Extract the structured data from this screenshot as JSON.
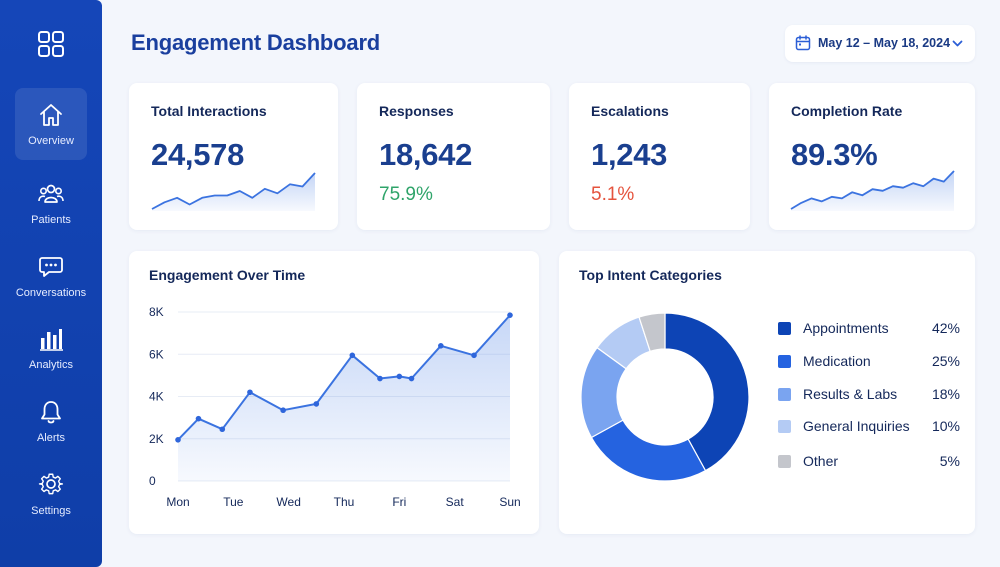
{
  "sidebar": {
    "logo_icon": "grid-icon",
    "items": [
      {
        "label": "Overview",
        "icon": "home-icon",
        "active": true
      },
      {
        "label": "Patients",
        "icon": "users-icon",
        "active": false
      },
      {
        "label": "Conversations",
        "icon": "chat-icon",
        "active": false
      },
      {
        "label": "Analytics",
        "icon": "bar-chart-icon",
        "active": false
      },
      {
        "label": "Alerts",
        "icon": "bell-icon",
        "active": false
      },
      {
        "label": "Settings",
        "icon": "gear-icon",
        "active": false
      }
    ]
  },
  "header": {
    "title": "Engagement Dashboard",
    "date_range": "May 12 – May 18, 2024"
  },
  "kpis": [
    {
      "label": "Total Interactions",
      "value": "24,578"
    },
    {
      "label": "Responses",
      "value": "18,642",
      "sub": "75.9%",
      "sub_color": "#2fa46a"
    },
    {
      "label": "Escalations",
      "value": "1,243",
      "sub": "5.1%",
      "sub_color": "#e5533d"
    },
    {
      "label": "Completion Rate",
      "value": "89.3%"
    }
  ],
  "colors": {
    "accent": "#1a3f9e",
    "line": "#3b73e0",
    "sidebar": "#1546b8"
  },
  "chart_data": [
    {
      "type": "area",
      "title": "Engagement Over Time",
      "x_ticks": [
        "Mon",
        "Tue",
        "Wed",
        "Thu",
        "Fri",
        "Sat",
        "Sun"
      ],
      "y_ticks": [
        "0",
        "2K",
        "4K",
        "6K",
        "8K"
      ],
      "ylim": [
        0,
        8000
      ],
      "grid": true,
      "points": [
        {
          "x": 0,
          "y": 1950
        },
        {
          "x": 0.37,
          "y": 2950
        },
        {
          "x": 0.8,
          "y": 2450
        },
        {
          "x": 1.3,
          "y": 4200
        },
        {
          "x": 1.9,
          "y": 3350
        },
        {
          "x": 2.5,
          "y": 3650
        },
        {
          "x": 3.15,
          "y": 5950
        },
        {
          "x": 3.65,
          "y": 4850
        },
        {
          "x": 4.0,
          "y": 4950
        },
        {
          "x": 4.22,
          "y": 4850
        },
        {
          "x": 4.75,
          "y": 6400
        },
        {
          "x": 5.35,
          "y": 5950
        },
        {
          "x": 6.0,
          "y": 7850
        }
      ]
    },
    {
      "type": "pie",
      "title": "Top Intent Categories",
      "donut": true,
      "slices": [
        {
          "label": "Appointments",
          "value": 42,
          "display": "42%",
          "color": "#0d44b5"
        },
        {
          "label": "Medication",
          "value": 25,
          "display": "25%",
          "color": "#2563e0"
        },
        {
          "label": "Results & Labs",
          "value": 18,
          "display": "18%",
          "color": "#7aa4f0"
        },
        {
          "label": "General Inquiries",
          "value": 10,
          "display": "10%",
          "color": "#b4cbf4"
        },
        {
          "label": "Other",
          "value": 5,
          "display": "5%",
          "color": "#c4c6cc"
        }
      ]
    }
  ],
  "sparklines": {
    "total_interactions": [
      2,
      5,
      7,
      4,
      7,
      8,
      8,
      10,
      7,
      11,
      9,
      13,
      12,
      18
    ],
    "completion_rate": [
      3,
      7,
      10,
      8,
      11,
      10,
      14,
      12,
      16,
      15,
      18,
      17,
      20,
      18,
      23,
      21,
      28
    ]
  }
}
